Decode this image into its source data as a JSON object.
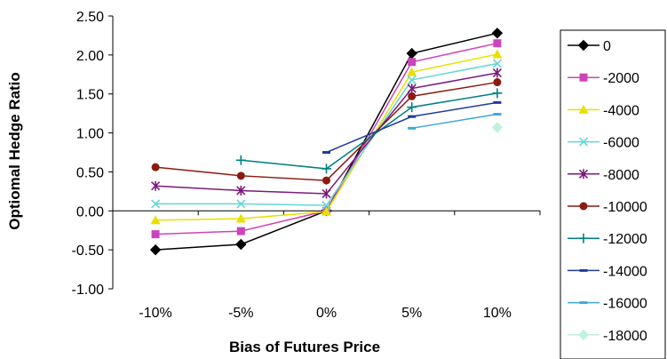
{
  "chart_data": {
    "type": "line",
    "title": "",
    "xlabel": "Bias of Futures Price",
    "ylabel": "Optiomal Hedge Ratio",
    "categories": [
      "-10%",
      "-5%",
      "0%",
      "5%",
      "10%"
    ],
    "y_ticks": [
      "-1.00",
      "-0.50",
      "0.00",
      "0.50",
      "1.00",
      "1.50",
      "2.00",
      "2.50"
    ],
    "ylim": [
      -1.0,
      2.5
    ],
    "grid": false,
    "legend_position": "right",
    "series": [
      {
        "name": "0",
        "color": "#000000",
        "marker": "diamond",
        "values": [
          -0.5,
          -0.43,
          0.0,
          2.02,
          2.28
        ]
      },
      {
        "name": "-2000",
        "color": "#CC44BB",
        "marker": "square",
        "values": [
          -0.3,
          -0.26,
          0.0,
          1.91,
          2.15
        ]
      },
      {
        "name": "-4000",
        "color": "#E8E000",
        "marker": "triangle",
        "values": [
          -0.12,
          -0.1,
          -0.01,
          1.78,
          2.01
        ]
      },
      {
        "name": "-6000",
        "color": "#66D6D6",
        "marker": "x",
        "values": [
          0.09,
          0.09,
          0.07,
          1.68,
          1.89
        ]
      },
      {
        "name": "-8000",
        "color": "#7A1A7A",
        "marker": "star",
        "values": [
          0.32,
          0.26,
          0.22,
          1.57,
          1.77
        ]
      },
      {
        "name": "-10000",
        "color": "#8B1A10",
        "marker": "circle",
        "values": [
          0.56,
          0.45,
          0.39,
          1.47,
          1.65
        ]
      },
      {
        "name": "-12000",
        "color": "#008080",
        "marker": "plus",
        "values": [
          null,
          0.65,
          0.54,
          1.33,
          1.51
        ]
      },
      {
        "name": "-14000",
        "color": "#1F3C9A",
        "marker": "dash",
        "values": [
          null,
          null,
          0.75,
          1.21,
          1.39
        ]
      },
      {
        "name": "-16000",
        "color": "#3FA8D8",
        "marker": "dash",
        "values": [
          null,
          null,
          null,
          1.06,
          1.24
        ]
      },
      {
        "name": "-18000",
        "color": "#BFF0E0",
        "marker": "diamond",
        "values": [
          null,
          null,
          null,
          null,
          1.07
        ]
      }
    ]
  }
}
